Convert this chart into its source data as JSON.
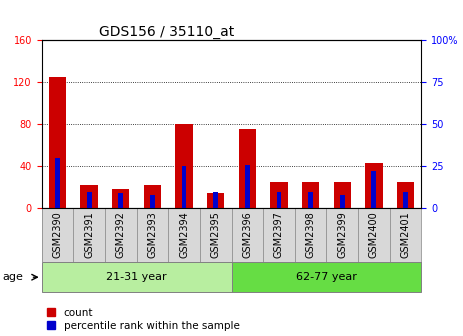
{
  "title": "GDS156 / 35110_at",
  "samples": [
    "GSM2390",
    "GSM2391",
    "GSM2392",
    "GSM2393",
    "GSM2394",
    "GSM2395",
    "GSM2396",
    "GSM2397",
    "GSM2398",
    "GSM2399",
    "GSM2400",
    "GSM2401"
  ],
  "counts": [
    125,
    22,
    18,
    22,
    80,
    15,
    76,
    25,
    25,
    25,
    43,
    25
  ],
  "percentiles": [
    30,
    10,
    9,
    8,
    25,
    10,
    26,
    10,
    10,
    8,
    22,
    10
  ],
  "groups": [
    {
      "label": "21-31 year",
      "start": 0,
      "end": 6,
      "color": "#b8eea0"
    },
    {
      "label": "62-77 year",
      "start": 6,
      "end": 12,
      "color": "#66dd44"
    }
  ],
  "ylim_left": [
    0,
    160
  ],
  "ylim_right": [
    0,
    100
  ],
  "yticks_left": [
    0,
    40,
    80,
    120,
    160
  ],
  "ytick_labels_left": [
    "0",
    "40",
    "80",
    "120",
    "160"
  ],
  "yticks_right": [
    0,
    25,
    50,
    75,
    100
  ],
  "ytick_labels_right": [
    "0",
    "25",
    "50",
    "75",
    "100%"
  ],
  "bar_color": "#cc0000",
  "pct_color": "#0000cc",
  "bar_width": 0.55,
  "pct_bar_width": 0.15,
  "legend_items": [
    {
      "label": "count",
      "color": "#cc0000"
    },
    {
      "label": "percentile rank within the sample",
      "color": "#0000cc"
    }
  ],
  "age_label": "age",
  "xlabel_bg": "#d8d8d8",
  "grid_color": "black",
  "title_fontsize": 10,
  "tick_fontsize": 7,
  "label_fontsize": 8
}
